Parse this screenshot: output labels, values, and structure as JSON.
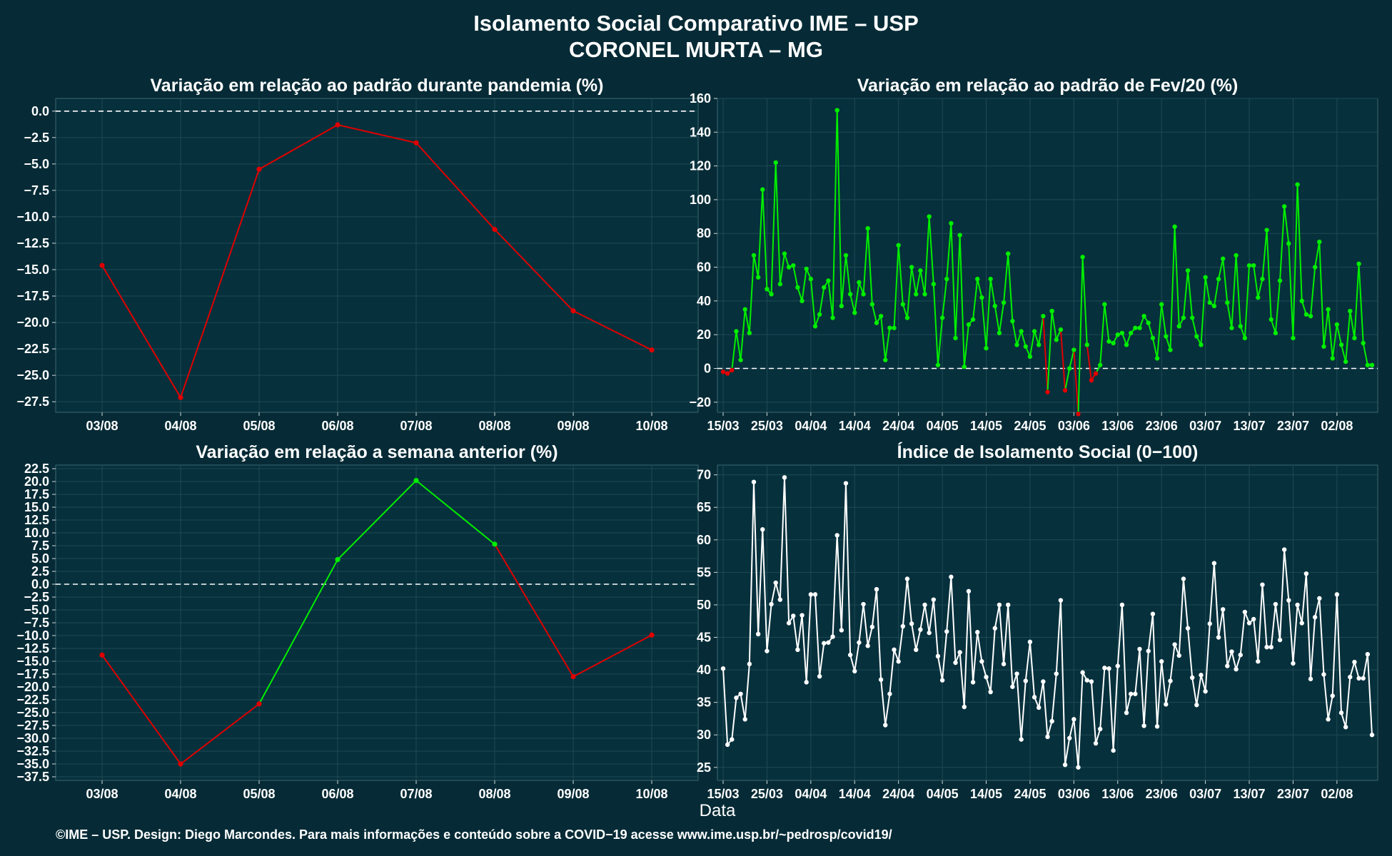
{
  "figure": {
    "title_line1": "Isolamento Social Comparativo IME – USP",
    "title_line2": "CORONEL MURTA – MG",
    "xlabel": "Data",
    "footer": "©IME – USP. Design: Diego Marcondes. Para mais informações e conteúdo sobre a COVID−19 acesse www.ime.usp.br/~pedrosp/covid19/"
  },
  "colors": {
    "background": "#062b36",
    "panel": "#06303c",
    "grid": "#1e4a55",
    "positive": "#00ee00",
    "negative": "#e00000",
    "index_line": "#ffffff"
  },
  "chart_data": [
    {
      "type": "line",
      "title": "Variação em relação ao padrão durante pandemia (%)",
      "categories": [
        "03/08",
        "04/08",
        "05/08",
        "06/08",
        "07/08",
        "08/08",
        "09/08",
        "10/08"
      ],
      "values": [
        -14.6,
        -27.1,
        -5.5,
        -1.3,
        -3.0,
        -11.2,
        -18.9,
        -22.6
      ],
      "ylim": [
        -28.5,
        1.2
      ],
      "yticks": [
        0,
        -2.5,
        -5,
        -7.5,
        -10,
        -12.5,
        -15,
        -17.5,
        -20,
        -22.5,
        -25,
        -27.5
      ],
      "ytick_labels": [
        "0.0",
        "−2.5",
        "−5.0",
        "−7.5",
        "−10.0",
        "−12.5",
        "−15.0",
        "−17.5",
        "−20.0",
        "−22.5",
        "−25.0",
        "−27.5"
      ],
      "reference_line": 0,
      "color_rule": "green_if_positive_red_if_negative"
    },
    {
      "type": "line",
      "title": "Variação em relação ao padrão de Fev/20 (%)",
      "x_start": "15/03",
      "xtick_labels": [
        "15/03",
        "25/03",
        "04/04",
        "14/04",
        "24/04",
        "04/05",
        "14/05",
        "24/05",
        "03/06",
        "13/06",
        "23/06",
        "03/07",
        "13/07",
        "23/07",
        "02/08"
      ],
      "xtick_interval_days": 10,
      "values": [
        -2,
        -3,
        -1,
        22,
        5,
        35,
        21,
        67,
        54,
        106,
        47,
        44,
        122,
        50,
        68,
        60,
        61,
        48,
        40,
        59,
        53,
        25,
        32,
        48,
        52,
        30,
        153,
        37,
        67,
        44,
        33,
        51,
        44,
        83,
        38,
        27,
        31,
        5,
        24,
        24,
        73,
        38,
        30,
        60,
        44,
        58,
        44,
        90,
        50,
        2,
        30,
        53,
        86,
        18,
        79,
        1,
        26,
        29,
        53,
        42,
        12,
        53,
        37,
        21,
        39,
        68,
        28,
        14,
        22,
        13,
        7,
        22,
        14,
        31,
        -14,
        34,
        17,
        23,
        -13,
        0,
        11,
        -27,
        66,
        14,
        -7,
        -3,
        2,
        38,
        16,
        15,
        20,
        21,
        14,
        21,
        24,
        24,
        31,
        27,
        18,
        6,
        38,
        19,
        11,
        84,
        25,
        30,
        58,
        30,
        19,
        14,
        54,
        39,
        37,
        53,
        65,
        39,
        24,
        67,
        25,
        18,
        61,
        61,
        42,
        53,
        82,
        29,
        21,
        52,
        96,
        74,
        18,
        109,
        40,
        32,
        31,
        60,
        75,
        13,
        35,
        6,
        26,
        14,
        4,
        34,
        18,
        62,
        15,
        2,
        2
      ],
      "ylim": [
        -26,
        160
      ],
      "yticks": [
        160,
        140,
        120,
        100,
        80,
        60,
        40,
        20,
        0,
        -20
      ],
      "ytick_labels": [
        "160",
        "140",
        "120",
        "100",
        "80",
        "60",
        "40",
        "20",
        "0",
        "−20"
      ],
      "reference_line": 0,
      "color_rule": "green_if_positive_red_if_negative"
    },
    {
      "type": "line",
      "title": "Variação em relação a semana anterior (%)",
      "categories": [
        "03/08",
        "04/08",
        "05/08",
        "06/08",
        "07/08",
        "08/08",
        "09/08",
        "10/08"
      ],
      "values": [
        -13.8,
        -35.0,
        -23.3,
        4.8,
        20.2,
        7.8,
        -18.0,
        -9.9
      ],
      "ylim": [
        -38.2,
        23.2
      ],
      "yticks": [
        22.5,
        20,
        17.5,
        15,
        12.5,
        10,
        7.5,
        5,
        2.5,
        0,
        -2.5,
        -5,
        -7.5,
        -10,
        -12.5,
        -15,
        -17.5,
        -20,
        -22.5,
        -25,
        -27.5,
        -30,
        -32.5,
        -35,
        -37.5
      ],
      "ytick_labels": [
        "22.5",
        "20.0",
        "17.5",
        "15.0",
        "12.5",
        "10.0",
        "7.5",
        "5.0",
        "2.5",
        "0.0",
        "−2.5",
        "−5.0",
        "−7.5",
        "−10.0",
        "−12.5",
        "−15.0",
        "−17.5",
        "−20.0",
        "−22.5",
        "−25.0",
        "−27.5",
        "−30.0",
        "−32.5",
        "−35.0",
        "−37.5"
      ],
      "reference_line": 0,
      "color_rule": "green_if_positive_red_if_negative"
    },
    {
      "type": "line",
      "title": "Índice de Isolamento Social (0−100)",
      "x_start": "15/03",
      "xtick_labels": [
        "15/03",
        "25/03",
        "04/04",
        "14/04",
        "24/04",
        "04/05",
        "14/05",
        "24/05",
        "03/06",
        "13/06",
        "23/06",
        "03/07",
        "13/07",
        "23/07",
        "02/08"
      ],
      "xtick_interval_days": 10,
      "values": [
        40.2,
        28.5,
        29.3,
        35.7,
        36.3,
        32.4,
        40.9,
        68.9,
        45.5,
        61.6,
        42.9,
        50.1,
        53.4,
        50.8,
        69.6,
        47.2,
        48.3,
        43.1,
        48.4,
        38.1,
        51.6,
        51.6,
        39,
        44.1,
        44.2,
        45.1,
        60.7,
        46.1,
        68.7,
        42.3,
        39.8,
        44.2,
        50.1,
        43.7,
        46.6,
        52.4,
        38.5,
        31.5,
        36.3,
        43.1,
        41.3,
        46.7,
        54,
        47.1,
        43.1,
        46.2,
        50,
        45.7,
        50.8,
        42.1,
        38.4,
        45.9,
        54.3,
        41.1,
        42.7,
        34.3,
        52.1,
        38.1,
        45.8,
        41.3,
        38.9,
        36.6,
        46.4,
        50,
        40.9,
        50,
        37.4,
        39.4,
        29.3,
        38.3,
        44.3,
        35.8,
        34.2,
        38.2,
        29.7,
        32.1,
        39.4,
        50.7,
        25.4,
        29.5,
        32.4,
        25,
        39.6,
        38.4,
        38.2,
        28.7,
        30.9,
        40.3,
        40.2,
        27.6,
        40.6,
        50,
        33.4,
        36.3,
        36.3,
        43.2,
        31.4,
        42.9,
        48.6,
        31.3,
        41.3,
        34.7,
        38.3,
        43.9,
        42.2,
        54,
        46.4,
        38.8,
        34.6,
        39.2,
        36.7,
        47.1,
        56.4,
        45,
        49.3,
        40.6,
        42.8,
        40.1,
        42.3,
        48.9,
        47.2,
        47.8,
        41.3,
        53.1,
        43.5,
        43.5,
        50.1,
        44.6,
        58.5,
        50.7,
        41,
        50,
        47.2,
        54.8,
        38.6,
        48.1,
        51,
        39.3,
        32.4,
        36,
        51.6,
        33.4,
        31.2,
        38.9,
        41.2,
        38.7,
        38.7,
        42.4,
        30
      ],
      "ylim": [
        23,
        71.5
      ],
      "yticks": [
        70,
        65,
        60,
        55,
        50,
        45,
        40,
        35,
        30,
        25
      ],
      "ytick_labels": [
        "70",
        "65",
        "60",
        "55",
        "50",
        "45",
        "40",
        "35",
        "30",
        "25"
      ]
    }
  ]
}
